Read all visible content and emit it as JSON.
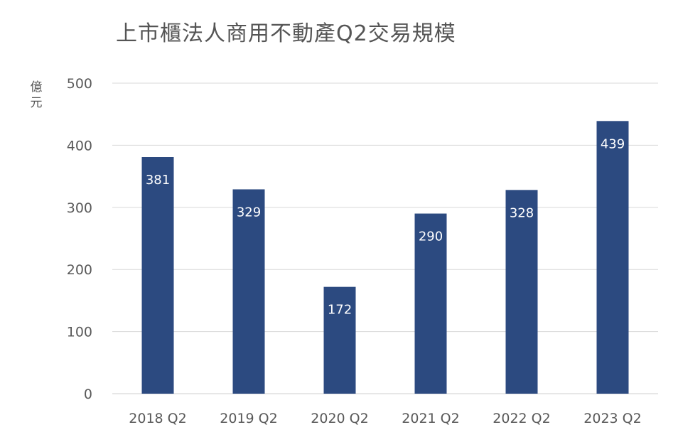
{
  "chart_data": {
    "type": "bar",
    "title": "上市櫃法人商用不動產Q2交易規模",
    "ylabel": "億元",
    "xlabel": "",
    "categories": [
      "2018 Q2",
      "2019 Q2",
      "2020 Q2",
      "2021 Q2",
      "2022 Q2",
      "2023 Q2"
    ],
    "values": [
      381,
      329,
      172,
      290,
      328,
      439
    ],
    "ylim": [
      0,
      500
    ],
    "yticks": [
      0,
      100,
      200,
      300,
      400,
      500
    ],
    "grid": true,
    "data_labels": true,
    "bar_color": "#2c4a80",
    "legend": "none"
  }
}
